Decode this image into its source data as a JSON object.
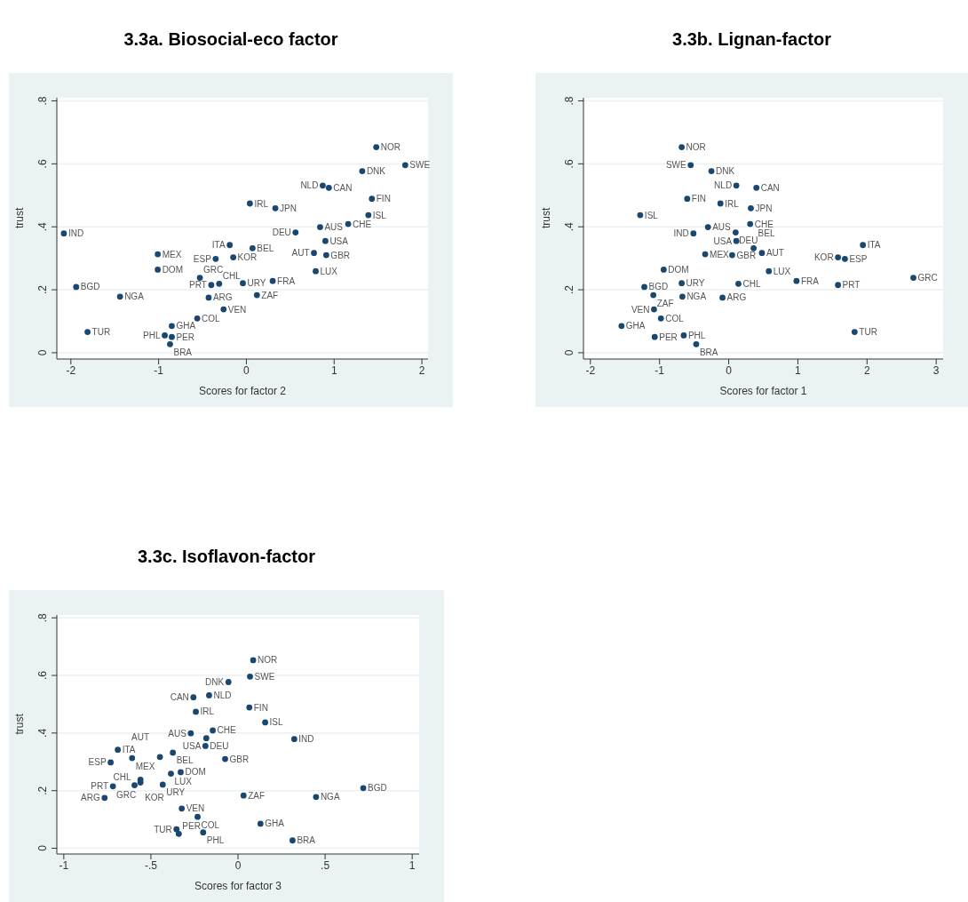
{
  "chart_data": [
    {
      "type": "scatter",
      "title": "3.3a. Biosocial-eco factor",
      "xlabel": "Scores for factor 2",
      "ylabel": "trust",
      "color": "#1a476f",
      "marker": "circle",
      "grid": "y",
      "xlim": [
        -2.16,
        2.07
      ],
      "xticks": [
        -2,
        -1,
        0,
        1,
        2
      ],
      "ylim": [
        -0.02,
        0.81
      ],
      "yticks": [
        {
          "value": 0,
          "label": "0"
        },
        {
          "value": 0.2,
          "label": ".2"
        },
        {
          "value": 0.4,
          "label": ".4"
        },
        {
          "value": 0.6,
          "label": ".6"
        },
        {
          "value": 0.8,
          "label": ".8"
        }
      ],
      "value_labels": [
        "NOR",
        "SWE",
        "DNK",
        "NLD",
        "CAN",
        "FIN",
        "IRL",
        "JPN",
        "ISL",
        "CHE",
        "AUS",
        "DEU",
        "IND",
        "USA",
        "ITA",
        "BEL",
        "MEX",
        "AUT",
        "GBR",
        "ESP",
        "KOR",
        "DOM",
        "LUX",
        "GRC",
        "FRA",
        "CHL",
        "PRT",
        "URY",
        "BGD",
        "ZAF",
        "NGA",
        "ARG",
        "VEN",
        "COL",
        "GHA",
        "TUR",
        "PHL",
        "PER",
        "BRA"
      ],
      "x": [
        1.48,
        1.81,
        1.32,
        0.87,
        0.94,
        1.43,
        0.04,
        0.33,
        1.39,
        1.16,
        0.84,
        0.56,
        -2.08,
        0.9,
        -0.19,
        0.07,
        -1.01,
        0.77,
        0.91,
        -0.35,
        -0.15,
        -1.01,
        0.79,
        -0.53,
        0.3,
        -0.31,
        -0.4,
        -0.04,
        -1.94,
        0.12,
        -1.44,
        -0.43,
        -0.26,
        -0.56,
        -0.85,
        -1.81,
        -0.93,
        -0.85,
        -0.87
      ],
      "values": [
        0.653,
        0.596,
        0.577,
        0.531,
        0.524,
        0.489,
        0.474,
        0.459,
        0.437,
        0.409,
        0.399,
        0.382,
        0.379,
        0.355,
        0.342,
        0.332,
        0.313,
        0.317,
        0.31,
        0.298,
        0.303,
        0.264,
        0.259,
        0.238,
        0.228,
        0.219,
        0.215,
        0.221,
        0.209,
        0.183,
        0.178,
        0.175,
        0.138,
        0.109,
        0.085,
        0.066,
        0.055,
        0.05,
        0.027
      ]
    },
    {
      "type": "scatter",
      "title": "3.3b. Lignan-factor",
      "xlabel": "Scores for factor 1",
      "ylabel": "trust",
      "color": "#1a476f",
      "marker": "circle",
      "grid": "y",
      "xlim": [
        -2.1,
        3.1
      ],
      "xticks": [
        -2,
        -1,
        0,
        1,
        2,
        3
      ],
      "ylim": [
        -0.02,
        0.81
      ],
      "yticks": [
        {
          "value": 0,
          "label": "0"
        },
        {
          "value": 0.2,
          "label": ".2"
        },
        {
          "value": 0.4,
          "label": ".4"
        },
        {
          "value": 0.6,
          "label": ".6"
        },
        {
          "value": 0.8,
          "label": ".8"
        }
      ],
      "value_labels": [
        "NOR",
        "SWE",
        "DNK",
        "NLD",
        "CAN",
        "FIN",
        "IRL",
        "JPN",
        "ISL",
        "CHE",
        "AUS",
        "DEU",
        "IND",
        "USA",
        "ITA",
        "BEL",
        "MEX",
        "AUT",
        "GBR",
        "ESP",
        "KOR",
        "DOM",
        "LUX",
        "GRC",
        "FRA",
        "CHL",
        "PRT",
        "URY",
        "BGD",
        "ZAF",
        "NGA",
        "ARG",
        "VEN",
        "COL",
        "GHA",
        "TUR",
        "PHL",
        "PER",
        "BRA"
      ],
      "x": [
        -0.68,
        -0.55,
        -0.25,
        0.11,
        0.4,
        -0.6,
        -0.12,
        0.32,
        -1.28,
        0.31,
        -0.3,
        0.1,
        -0.51,
        0.11,
        1.94,
        0.36,
        -0.34,
        0.48,
        0.05,
        1.68,
        1.58,
        -0.94,
        0.58,
        2.67,
        0.98,
        0.14,
        1.58,
        -0.68,
        -1.22,
        -1.09,
        -0.67,
        -0.09,
        -1.08,
        -0.98,
        -1.55,
        1.82,
        -0.65,
        -1.07,
        -0.47
      ],
      "values": [
        0.653,
        0.596,
        0.577,
        0.531,
        0.524,
        0.489,
        0.474,
        0.459,
        0.437,
        0.409,
        0.399,
        0.382,
        0.379,
        0.355,
        0.342,
        0.332,
        0.313,
        0.317,
        0.31,
        0.298,
        0.303,
        0.264,
        0.259,
        0.238,
        0.228,
        0.219,
        0.215,
        0.221,
        0.209,
        0.183,
        0.178,
        0.175,
        0.138,
        0.109,
        0.085,
        0.066,
        0.055,
        0.05,
        0.027
      ]
    },
    {
      "type": "scatter",
      "title": "3.3c. Isoflavon-factor",
      "xlabel": "Scores for factor 3",
      "ylabel": "trust",
      "color": "#1a476f",
      "marker": "circle",
      "grid": "y",
      "xlim": [
        -1.04,
        1.04
      ],
      "xticks": [
        -1,
        {
          "value": -0.5,
          "label": "-.5"
        },
        0,
        {
          "value": 0.5,
          "label": ".5"
        },
        1
      ],
      "ylim": [
        -0.02,
        0.81
      ],
      "yticks": [
        {
          "value": 0,
          "label": "0"
        },
        {
          "value": 0.2,
          "label": ".2"
        },
        {
          "value": 0.4,
          "label": ".4"
        },
        {
          "value": 0.6,
          "label": ".6"
        },
        {
          "value": 0.8,
          "label": ".8"
        }
      ],
      "value_labels": [
        "NOR",
        "SWE",
        "DNK",
        "NLD",
        "CAN",
        "FIN",
        "IRL",
        "ISL",
        "CHE",
        "AUS",
        "DEU",
        "IND",
        "USA",
        "ITA",
        "BEL",
        "MEX",
        "AUT",
        "GBR",
        "ESP",
        "KOR",
        "DOM",
        "LUX",
        "GRC",
        "CHL",
        "PRT",
        "URY",
        "BGD",
        "ZAF",
        "NGA",
        "ARG",
        "VEN",
        "COL",
        "GHA",
        "TUR",
        "PHL",
        "PER",
        "BRA"
      ],
      "x": [
        0.087,
        0.069,
        -0.055,
        -0.166,
        -0.256,
        0.065,
        -0.242,
        0.156,
        -0.145,
        -0.271,
        -0.182,
        0.323,
        -0.187,
        -0.69,
        -0.374,
        -0.608,
        -0.448,
        -0.074,
        -0.731,
        -0.56,
        -0.329,
        -0.385,
        -0.56,
        -0.594,
        -0.718,
        -0.432,
        0.719,
        0.032,
        0.448,
        -0.766,
        -0.323,
        -0.232,
        0.129,
        -0.353,
        -0.2,
        -0.34,
        0.313
      ],
      "values": [
        0.653,
        0.596,
        0.577,
        0.531,
        0.524,
        0.489,
        0.474,
        0.437,
        0.409,
        0.399,
        0.382,
        0.379,
        0.355,
        0.342,
        0.332,
        0.313,
        0.317,
        0.31,
        0.298,
        0.228,
        0.264,
        0.259,
        0.238,
        0.219,
        0.215,
        0.221,
        0.209,
        0.183,
        0.178,
        0.175,
        0.138,
        0.109,
        0.085,
        0.066,
        0.055,
        0.05,
        0.027
      ]
    }
  ]
}
